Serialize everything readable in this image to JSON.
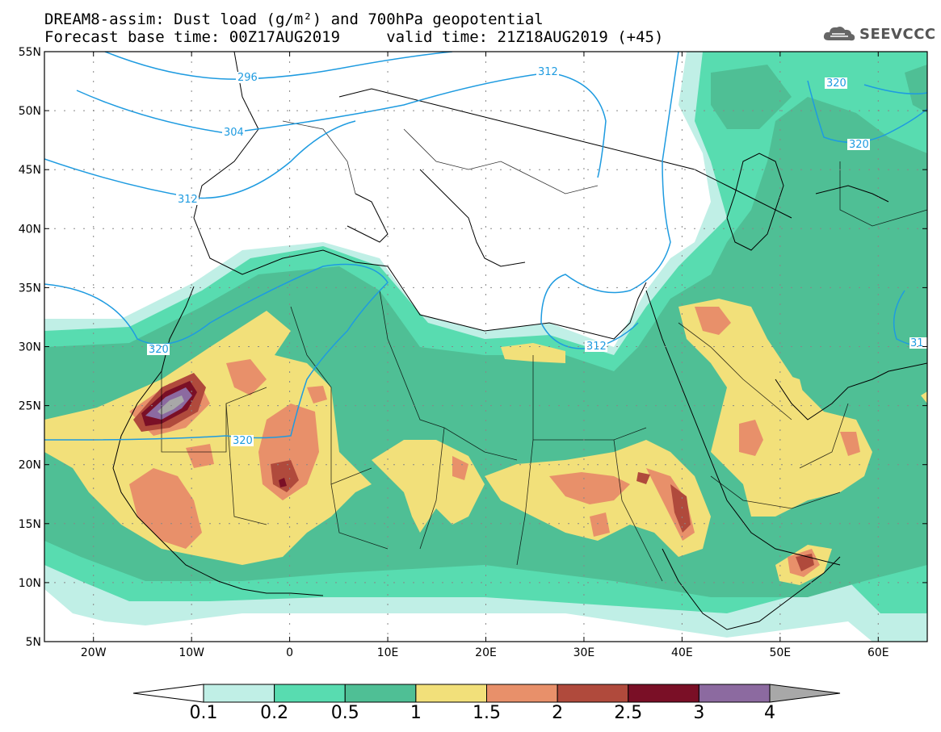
{
  "title_line1": "DREAM8-assim: Dust load (g/m²) and 700hPa geopotential",
  "title_line2": "Forecast base time: 00Z17AUG2019     valid time: 21Z18AUG2019 (+45)",
  "logo": {
    "text": "SEEVCCC",
    "icon": "cloud-logo-icon"
  },
  "axes": {
    "lon_range": [
      -25,
      65
    ],
    "lat_range": [
      5,
      55
    ],
    "lon_ticks": [
      {
        "value": -20,
        "label": "20W"
      },
      {
        "value": -10,
        "label": "10W"
      },
      {
        "value": 0,
        "label": "0"
      },
      {
        "value": 10,
        "label": "10E"
      },
      {
        "value": 20,
        "label": "20E"
      },
      {
        "value": 30,
        "label": "30E"
      },
      {
        "value": 40,
        "label": "40E"
      },
      {
        "value": 50,
        "label": "50E"
      },
      {
        "value": 60,
        "label": "60E"
      }
    ],
    "lat_ticks": [
      {
        "value": 55,
        "label": "55N"
      },
      {
        "value": 50,
        "label": "50N"
      },
      {
        "value": 45,
        "label": "45N"
      },
      {
        "value": 40,
        "label": "40N"
      },
      {
        "value": 35,
        "label": "35N"
      },
      {
        "value": 30,
        "label": "30N"
      },
      {
        "value": 25,
        "label": "25N"
      },
      {
        "value": 20,
        "label": "20N"
      },
      {
        "value": 15,
        "label": "15N"
      },
      {
        "value": 10,
        "label": "10N"
      },
      {
        "value": 5,
        "label": "5N"
      }
    ]
  },
  "colorbar": {
    "levels": [
      "0.1",
      "0.2",
      "0.5",
      "1",
      "1.5",
      "2",
      "2.5",
      "3",
      "4"
    ],
    "colors": [
      "#ffffff",
      "#c0efe6",
      "#58dcb0",
      "#4fbf95",
      "#f2e07a",
      "#e8906a",
      "#b04a3c",
      "#7a0f26",
      "#8c6aa0",
      "#a8a8a8"
    ]
  },
  "isolines": [
    {
      "label": "296"
    },
    {
      "label": "304"
    },
    {
      "label": "312"
    },
    {
      "label": "312"
    },
    {
      "label": "320"
    },
    {
      "label": "320"
    },
    {
      "label": "320"
    },
    {
      "label": "312"
    },
    {
      "label": "320"
    },
    {
      "label": "31"
    }
  ]
}
